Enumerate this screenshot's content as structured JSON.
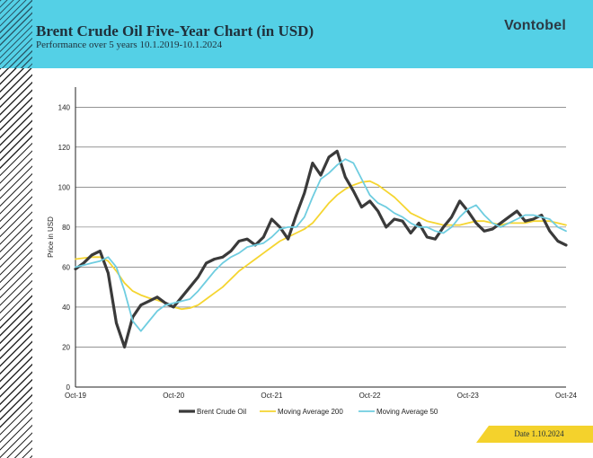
{
  "header": {
    "title": "Brent Crude Oil Five-Year Chart (in USD)",
    "subtitle": "Performance over 5 years 10.1.2019-10.1.2024",
    "brand": "Vontobel"
  },
  "footer": {
    "date_label": "Date 1.10.2024"
  },
  "colors": {
    "header_bg": "#54d0e6",
    "price": "#3a3a3a",
    "ma200": "#f5d531",
    "ma50": "#6fcde0",
    "date_tab": "#f4d22c"
  },
  "chart_data": {
    "type": "line",
    "title": "Brent Crude Oil Five-Year Chart (in USD)",
    "xlabel": "",
    "ylabel": "Price in USD",
    "x_ticks": [
      "Oct-19",
      "Oct-20",
      "Oct-21",
      "Oct-22",
      "Oct-23",
      "Oct-24"
    ],
    "y_ticks": [
      0,
      20,
      40,
      60,
      80,
      100,
      120,
      140
    ],
    "ylim": [
      0,
      150
    ],
    "xlim": [
      "2019-10",
      "2024-10"
    ],
    "grid": "horizontal",
    "legend_position": "bottom",
    "series": [
      {
        "name": "Brent Crude Oil",
        "color": "#3a3a3a",
        "x": [
          "2019-10",
          "2019-11",
          "2019-12",
          "2020-01",
          "2020-02",
          "2020-03",
          "2020-04",
          "2020-05",
          "2020-06",
          "2020-07",
          "2020-08",
          "2020-09",
          "2020-10",
          "2020-11",
          "2020-12",
          "2021-01",
          "2021-02",
          "2021-03",
          "2021-04",
          "2021-05",
          "2021-06",
          "2021-07",
          "2021-08",
          "2021-09",
          "2021-10",
          "2021-11",
          "2021-12",
          "2022-01",
          "2022-02",
          "2022-03",
          "2022-04",
          "2022-05",
          "2022-06",
          "2022-07",
          "2022-08",
          "2022-09",
          "2022-10",
          "2022-11",
          "2022-12",
          "2023-01",
          "2023-02",
          "2023-03",
          "2023-04",
          "2023-05",
          "2023-06",
          "2023-07",
          "2023-08",
          "2023-09",
          "2023-10",
          "2023-11",
          "2023-12",
          "2024-01",
          "2024-02",
          "2024-03",
          "2024-04",
          "2024-05",
          "2024-06",
          "2024-07",
          "2024-08",
          "2024-09",
          "2024-10"
        ],
        "values": [
          59,
          62,
          66,
          68,
          57,
          32,
          20,
          35,
          41,
          43,
          45,
          42,
          40,
          45,
          50,
          55,
          62,
          64,
          65,
          68,
          73,
          74,
          71,
          75,
          84,
          80,
          74,
          86,
          97,
          112,
          106,
          115,
          118,
          105,
          98,
          90,
          93,
          88,
          80,
          84,
          83,
          77,
          82,
          75,
          74,
          80,
          85,
          93,
          88,
          82,
          78,
          79,
          82,
          85,
          88,
          83,
          84,
          86,
          78,
          73,
          71
        ]
      },
      {
        "name": "Moving Average 200",
        "color": "#f5d531",
        "x": [
          "2019-10",
          "2019-11",
          "2019-12",
          "2020-01",
          "2020-02",
          "2020-03",
          "2020-04",
          "2020-05",
          "2020-06",
          "2020-07",
          "2020-08",
          "2020-09",
          "2020-10",
          "2020-11",
          "2020-12",
          "2021-01",
          "2021-02",
          "2021-03",
          "2021-04",
          "2021-05",
          "2021-06",
          "2021-07",
          "2021-08",
          "2021-09",
          "2021-10",
          "2021-11",
          "2021-12",
          "2022-01",
          "2022-02",
          "2022-03",
          "2022-04",
          "2022-05",
          "2022-06",
          "2022-07",
          "2022-08",
          "2022-09",
          "2022-10",
          "2022-11",
          "2022-12",
          "2023-01",
          "2023-02",
          "2023-03",
          "2023-04",
          "2023-05",
          "2023-06",
          "2023-07",
          "2023-08",
          "2023-09",
          "2023-10",
          "2023-11",
          "2023-12",
          "2024-01",
          "2024-02",
          "2024-03",
          "2024-04",
          "2024-05",
          "2024-06",
          "2024-07",
          "2024-08",
          "2024-09",
          "2024-10"
        ],
        "values": [
          64,
          64.5,
          65,
          65,
          63,
          58,
          52,
          48,
          46,
          44.5,
          43.5,
          42,
          40,
          39,
          39.5,
          41,
          44,
          47,
          50,
          54,
          58,
          61,
          64,
          67,
          70,
          73,
          75,
          77,
          79,
          82,
          87,
          92,
          96,
          99,
          101,
          102.5,
          103,
          101,
          98,
          95,
          91,
          87,
          85,
          83,
          82,
          81,
          81,
          81,
          82,
          83,
          83,
          82,
          81,
          82,
          82,
          82,
          83,
          83,
          83,
          82,
          81
        ]
      },
      {
        "name": "Moving Average 50",
        "color": "#6fcde0",
        "x": [
          "2019-10",
          "2019-11",
          "2019-12",
          "2020-01",
          "2020-02",
          "2020-03",
          "2020-04",
          "2020-05",
          "2020-06",
          "2020-07",
          "2020-08",
          "2020-09",
          "2020-10",
          "2020-11",
          "2020-12",
          "2021-01",
          "2021-02",
          "2021-03",
          "2021-04",
          "2021-05",
          "2021-06",
          "2021-07",
          "2021-08",
          "2021-09",
          "2021-10",
          "2021-11",
          "2021-12",
          "2022-01",
          "2022-02",
          "2022-03",
          "2022-04",
          "2022-05",
          "2022-06",
          "2022-07",
          "2022-08",
          "2022-09",
          "2022-10",
          "2022-11",
          "2022-12",
          "2023-01",
          "2023-02",
          "2023-03",
          "2023-04",
          "2023-05",
          "2023-06",
          "2023-07",
          "2023-08",
          "2023-09",
          "2023-10",
          "2023-11",
          "2023-12",
          "2024-01",
          "2024-02",
          "2024-03",
          "2024-04",
          "2024-05",
          "2024-06",
          "2024-07",
          "2024-08",
          "2024-09",
          "2024-10"
        ],
        "values": [
          60,
          61,
          62,
          63,
          65,
          60,
          48,
          33,
          28,
          33,
          38,
          41,
          42,
          43,
          44,
          48,
          53,
          58,
          62,
          65,
          67,
          70,
          71,
          72,
          75,
          79,
          80,
          80,
          85,
          95,
          104,
          107,
          111,
          114,
          112,
          104,
          96,
          92,
          90,
          87,
          85,
          82,
          80,
          80,
          78,
          77,
          80,
          85,
          89,
          91,
          86,
          82,
          80,
          82,
          84,
          86,
          86,
          85,
          84,
          80,
          78
        ]
      }
    ]
  }
}
